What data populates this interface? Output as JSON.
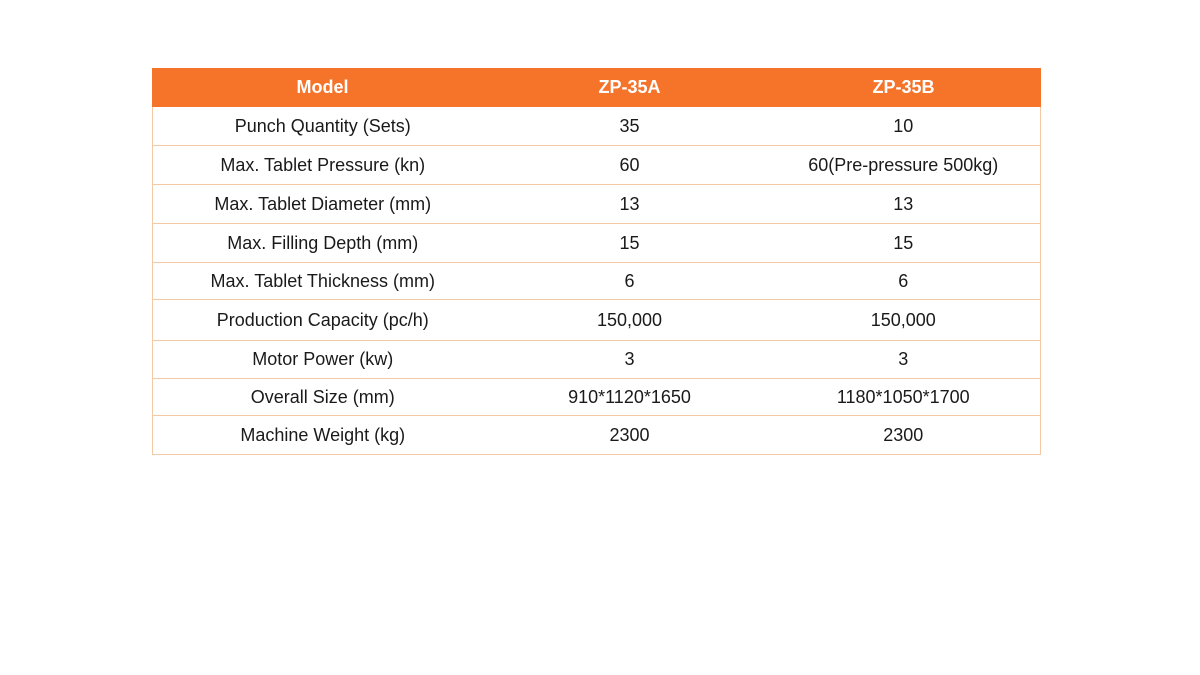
{
  "colors": {
    "accent": "#f6732a",
    "rule": "#f4c9a6"
  },
  "table": {
    "headers": [
      "Model",
      "ZP-35A",
      "ZP-35B"
    ],
    "rows": [
      [
        "Punch Quantity (Sets)",
        "35",
        "10"
      ],
      [
        "Max. Tablet Pressure (kn)",
        "60",
        "60(Pre-pressure 500kg)"
      ],
      [
        "Max. Tablet Diameter (mm)",
        "13",
        "13"
      ],
      [
        "Max. Filling Depth (mm)",
        "15",
        "15"
      ],
      [
        "Max. Tablet Thickness (mm)",
        "6",
        "6"
      ],
      [
        "Production Capacity (pc/h)",
        "150,000",
        "150,000"
      ],
      [
        "Motor Power (kw)",
        "3",
        "3"
      ],
      [
        "Overall Size (mm)",
        "910*1120*1650",
        "1180*1050*1700"
      ],
      [
        "Machine Weight (kg)",
        "2300",
        "2300"
      ]
    ]
  }
}
